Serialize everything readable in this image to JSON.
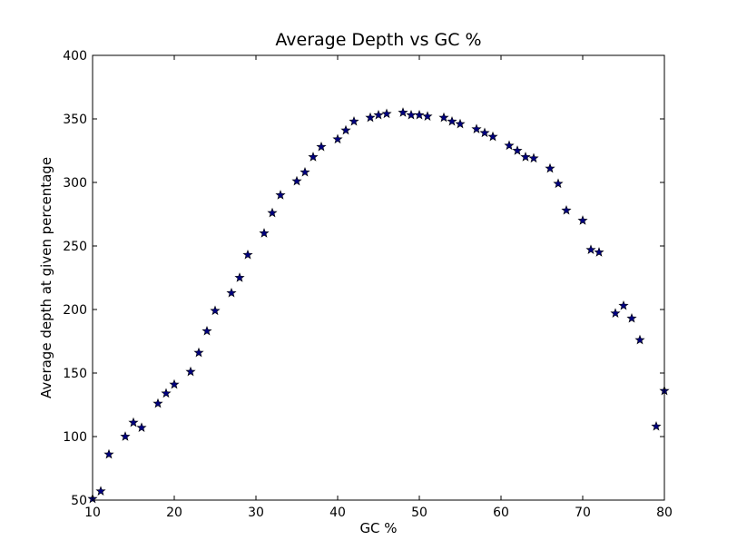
{
  "chart_data": {
    "type": "scatter",
    "title": "Average Depth vs GC %",
    "xlabel": "GC %",
    "ylabel": "Average depth at given percentage",
    "xlim": [
      10,
      80
    ],
    "ylim": [
      50,
      400
    ],
    "xticks": [
      10,
      20,
      30,
      40,
      50,
      60,
      70,
      80
    ],
    "yticks": [
      50,
      100,
      150,
      200,
      250,
      300,
      350,
      400
    ],
    "grid": false,
    "marker": "star",
    "marker_color": "#000080",
    "series": [
      {
        "x": [
          10,
          11,
          12,
          14,
          15,
          16,
          18,
          19,
          20,
          22,
          23,
          24,
          25,
          27,
          28,
          29,
          31,
          32,
          33,
          35,
          36,
          37,
          38,
          40,
          41,
          42,
          44,
          45,
          46,
          48,
          49,
          50,
          51,
          53,
          54,
          55,
          57,
          58,
          59,
          61,
          62,
          63,
          64,
          66,
          67,
          68,
          70,
          71,
          72,
          74,
          75,
          76,
          77,
          79,
          80
        ],
        "y": [
          51,
          57,
          86,
          100,
          111,
          107,
          126,
          134,
          141,
          151,
          166,
          183,
          199,
          213,
          225,
          243,
          260,
          276,
          290,
          301,
          308,
          320,
          328,
          334,
          341,
          348,
          351,
          353,
          354,
          355,
          353,
          353,
          352,
          351,
          348,
          346,
          342,
          339,
          336,
          329,
          325,
          320,
          319,
          311,
          299,
          278,
          270,
          247,
          245,
          197,
          203,
          193,
          176,
          108,
          136
        ]
      }
    ]
  }
}
